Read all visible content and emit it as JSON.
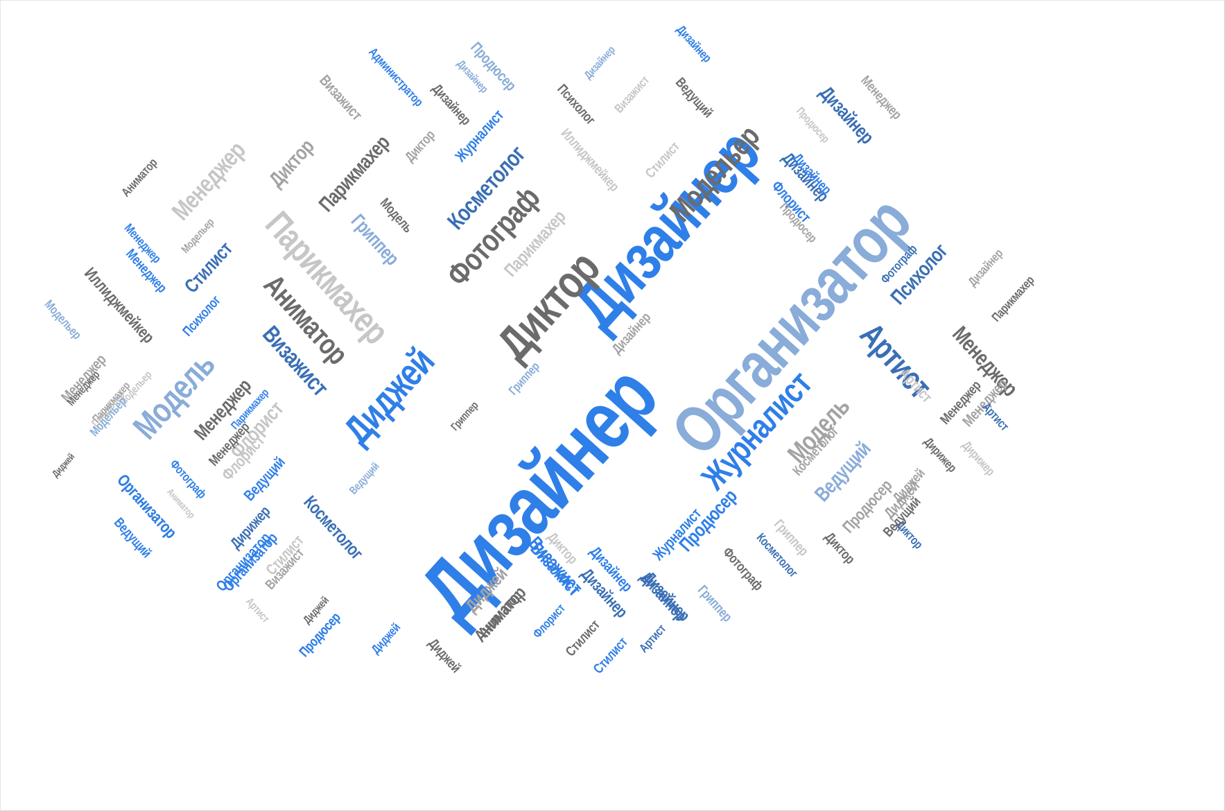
{
  "palette": {
    "blue": "#2f7fe8",
    "navy": "#3a6fb5",
    "steel": "#89acd8",
    "dark": "#6b6b6b",
    "gray": "#a3a3a3",
    "light": "#c6c6c6"
  },
  "words": [
    {
      "text": "Дизайнер",
      "color": "blue"
    },
    {
      "text": "Организатор",
      "color": "steel"
    },
    {
      "text": "Дизайнер",
      "color": "blue"
    },
    {
      "text": "Диктор",
      "color": "dark"
    },
    {
      "text": "Фотограф",
      "color": "dark"
    },
    {
      "text": "Диджей",
      "color": "blue"
    },
    {
      "text": "Журналист",
      "color": "blue"
    },
    {
      "text": "Артист",
      "color": "navy"
    },
    {
      "text": "Модельер",
      "color": "dark"
    },
    {
      "text": "Модель",
      "color": "steel"
    },
    {
      "text": "Парикмахер",
      "color": "light"
    },
    {
      "text": "Аниматор",
      "color": "dark"
    },
    {
      "text": "Визажист",
      "color": "navy"
    },
    {
      "text": "Модель",
      "color": "gray"
    },
    {
      "text": "Ведущий",
      "color": "steel"
    },
    {
      "text": "Менеджер",
      "color": "dark"
    },
    {
      "text": "Менеджер",
      "color": "light"
    },
    {
      "text": "Косметолог",
      "color": "navy"
    },
    {
      "text": "Космeтолог",
      "color": "navy"
    },
    {
      "text": "Стилист",
      "color": "navy"
    },
    {
      "text": "Менеджер",
      "color": "dark"
    },
    {
      "text": "Парикмахер",
      "color": "light"
    },
    {
      "text": "Дизайнер",
      "color": "navy"
    },
    {
      "text": "Диктор",
      "color": "gray"
    },
    {
      "text": "Парикмахер",
      "color": "dark"
    },
    {
      "text": "Психолог",
      "color": "navy"
    },
    {
      "text": "Иллиджмейкер",
      "color": "dark"
    },
    {
      "text": "Флорист",
      "color": "light"
    },
    {
      "text": "Организатор",
      "color": "navy"
    },
    {
      "text": "Модельер",
      "color": "gray"
    },
    {
      "text": "Продюсер",
      "color": "steel"
    },
    {
      "text": "Визажист",
      "color": "blue"
    },
    {
      "text": "Гриппер",
      "color": "steel"
    },
    {
      "text": "Продюсер",
      "color": "blue"
    },
    {
      "text": "Дизайнер",
      "color": "navy"
    },
    {
      "text": "Продюсер",
      "color": "gray"
    },
    {
      "text": "Стилист",
      "color": "light"
    },
    {
      "text": "Модельер",
      "color": "steel"
    },
    {
      "text": "Менеджер",
      "color": "gray"
    },
    {
      "text": "Диджей",
      "color": "gray"
    },
    {
      "text": "Менеджер",
      "color": "gray"
    },
    {
      "text": "Ведущий",
      "color": "blue"
    },
    {
      "text": "Психолог",
      "color": "blue"
    },
    {
      "text": "Менеджер",
      "color": "blue"
    },
    {
      "text": "Иллиджмейкер",
      "color": "light"
    },
    {
      "text": "Визажист",
      "color": "gray"
    },
    {
      "text": "Дизайнер",
      "color": "gray"
    },
    {
      "text": "Аниматор",
      "color": "dark"
    },
    {
      "text": "Продюсер",
      "color": "blue"
    },
    {
      "text": "Продюсер",
      "color": "light"
    },
    {
      "text": "Администратор",
      "color": "blue"
    },
    {
      "text": "Дизайнер",
      "color": "steel"
    },
    {
      "text": "Визажист",
      "color": "light"
    },
    {
      "text": "Дизайнер",
      "color": "dark"
    },
    {
      "text": "Ведущий",
      "color": "dark"
    },
    {
      "text": "Дизайнер",
      "color": "blue"
    },
    {
      "text": "Дизайнер",
      "color": "steel"
    },
    {
      "text": "Психолог",
      "color": "dark"
    },
    {
      "text": "Организатор",
      "color": "blue"
    },
    {
      "text": "Дизайнер",
      "color": "navy"
    },
    {
      "text": "Дизайнер",
      "color": "navy"
    },
    {
      "text": "Менеджер",
      "color": "gray"
    },
    {
      "text": "Диджей",
      "color": "gray"
    },
    {
      "text": "Журналист",
      "color": "blue"
    },
    {
      "text": "Диктор",
      "color": "gray"
    },
    {
      "text": "Модель",
      "color": "dark"
    },
    {
      "text": "Флорист",
      "color": "blue"
    },
    {
      "text": "Дизайнер",
      "color": "blue"
    },
    {
      "text": "Фотограф",
      "color": "navy"
    },
    {
      "text": "Дизайнер",
      "color": "gray"
    },
    {
      "text": "Парикмахер",
      "color": "dark"
    },
    {
      "text": "Продюсер",
      "color": "gray"
    },
    {
      "text": "Аниматор",
      "color": "dark"
    },
    {
      "text": "Продюсер",
      "color": "light"
    },
    {
      "text": "Стилист",
      "color": "light"
    },
    {
      "text": "Артист",
      "color": "navy"
    },
    {
      "text": "Диджей",
      "color": "dark"
    },
    {
      "text": "Модельер",
      "color": "light"
    },
    {
      "text": "Менеджер",
      "color": "blue"
    },
    {
      "text": "Модельер",
      "color": "steel"
    },
    {
      "text": "Парикмахер",
      "color": "blue"
    },
    {
      "text": "Флорист",
      "color": "light"
    },
    {
      "text": "Менеджер",
      "color": "dark"
    },
    {
      "text": "Ведущий",
      "color": "blue"
    },
    {
      "text": "Фотограф",
      "color": "blue"
    },
    {
      "text": "Организатор",
      "color": "blue"
    },
    {
      "text": "Аниматор",
      "color": "light"
    },
    {
      "text": "Дирижер",
      "color": "navy"
    },
    {
      "text": "Организатор",
      "color": "blue"
    },
    {
      "text": "Визажист",
      "color": "gray"
    },
    {
      "text": "Диджей",
      "color": "dark"
    },
    {
      "text": "Артист",
      "color": "light"
    },
    {
      "text": "Продюсер",
      "color": "blue"
    },
    {
      "text": "Диджей",
      "color": "blue"
    },
    {
      "text": "Менеджер",
      "color": "dark"
    },
    {
      "text": "Парикмахер",
      "color": "gray"
    },
    {
      "text": "Ведущий",
      "color": "steel"
    },
    {
      "text": "Гриппер",
      "color": "dark"
    },
    {
      "text": "Диктор",
      "color": "light"
    },
    {
      "text": "Диджей",
      "color": "gray"
    },
    {
      "text": "Аниматор",
      "color": "dark"
    },
    {
      "text": "Диджей",
      "color": "dark"
    },
    {
      "text": "Визажист",
      "color": "blue"
    },
    {
      "text": "Флорист",
      "color": "blue"
    },
    {
      "text": "Дизайнер",
      "color": "blue"
    },
    {
      "text": "Стилист",
      "color": "dark"
    },
    {
      "text": "Стилист",
      "color": "blue"
    },
    {
      "text": "Дизайнер",
      "color": "navy"
    },
    {
      "text": "Артист",
      "color": "navy"
    },
    {
      "text": "Гриппер",
      "color": "steel"
    },
    {
      "text": "Фотограф",
      "color": "dark"
    },
    {
      "text": "Косметолог",
      "color": "navy"
    },
    {
      "text": "Гриппер",
      "color": "light"
    },
    {
      "text": "Диктор",
      "color": "dark"
    },
    {
      "text": "Диджей",
      "color": "gray"
    },
    {
      "text": "Дирижер",
      "color": "light"
    },
    {
      "text": "Диктор",
      "color": "navy"
    },
    {
      "text": "Ведущий",
      "color": "dark"
    },
    {
      "text": "Менеджер",
      "color": "dark"
    },
    {
      "text": "Гриппер",
      "color": "steel"
    },
    {
      "text": "Дирижер",
      "color": "dark"
    },
    {
      "text": "Артист",
      "color": "light"
    },
    {
      "text": "Журналист",
      "color": "blue"
    },
    {
      "text": "Космeтолог",
      "color": "gray"
    }
  ]
}
